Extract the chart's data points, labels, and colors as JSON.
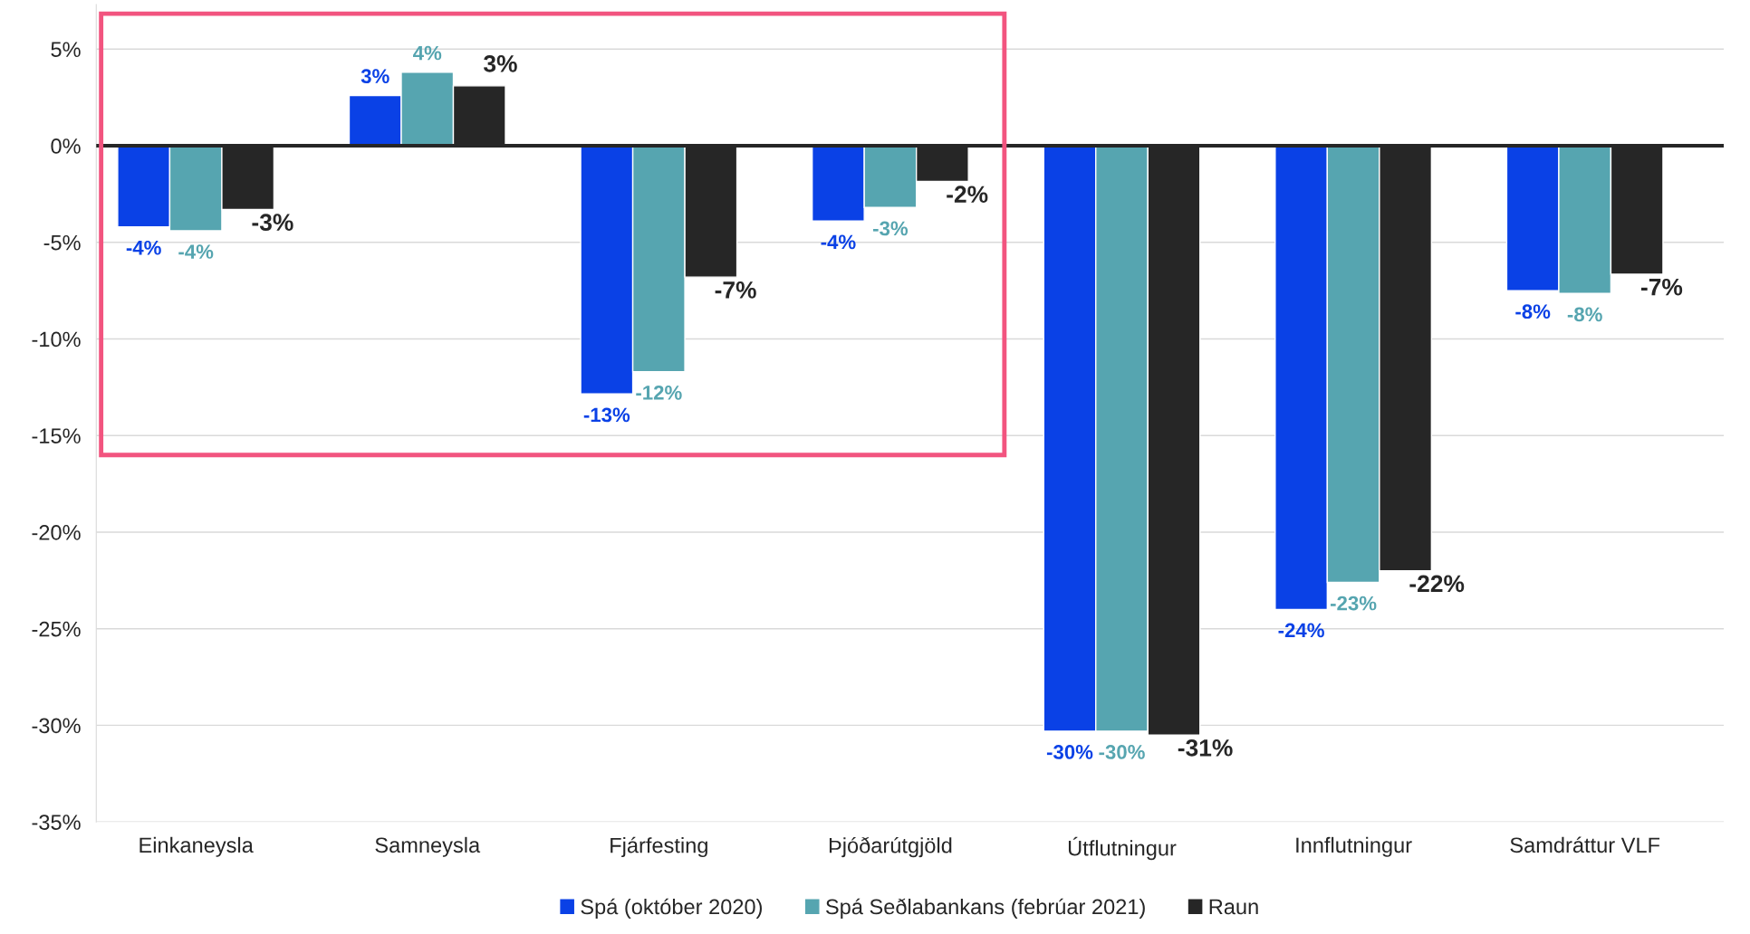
{
  "chart_data": {
    "type": "bar",
    "categories": [
      "Einkaneysla",
      "Samneysla",
      "Fjárfesting",
      "Þjóðarútgjöld",
      "Útflutningur",
      "Innflutningur",
      "Samdráttur VLF"
    ],
    "series": [
      {
        "name": "Spá (október 2020)",
        "color": "#0a41e6",
        "values": [
          -4.2,
          2.6,
          -12.85,
          -3.9,
          -30.3,
          -24.0,
          -7.5
        ],
        "value_labels": [
          "-4%",
          "3%",
          "-13%",
          "-4%",
          "-30%",
          "-24%",
          "-8%"
        ]
      },
      {
        "name": "Spá Seðlabankans (febrúar 2021)",
        "color": "#56a5b0",
        "values": [
          -4.4,
          3.8,
          -11.7,
          -3.2,
          -30.3,
          -22.6,
          -7.65
        ],
        "value_labels": [
          "-4%",
          "4%",
          "-12%",
          "-3%",
          "-30%",
          "-23%",
          "-8%"
        ]
      },
      {
        "name": "Raun",
        "color": "#262626",
        "values": [
          -3.3,
          3.1,
          -6.8,
          -1.85,
          -30.5,
          -22.0,
          -6.65
        ],
        "value_labels": [
          "-3%",
          "3%",
          "-7%",
          "-2%",
          "-31%",
          "-22%",
          "-7%"
        ]
      }
    ],
    "ylim": [
      -35,
      7.3
    ],
    "yticks": [
      {
        "value": -35,
        "label": "-35%"
      },
      {
        "value": -30,
        "label": "-30%"
      },
      {
        "value": -25,
        "label": "-25%"
      },
      {
        "value": -20,
        "label": "-20%"
      },
      {
        "value": -15,
        "label": "-15%"
      },
      {
        "value": -10,
        "label": "-10%"
      },
      {
        "value": -5,
        "label": "-5%"
      },
      {
        "value": 0,
        "label": "0%"
      },
      {
        "value": 5,
        "label": "5%"
      }
    ],
    "ref_lines": [
      {
        "axis": "y",
        "value": 0,
        "color": "#262626"
      }
    ],
    "grid": "y",
    "legend": "bottom"
  }
}
